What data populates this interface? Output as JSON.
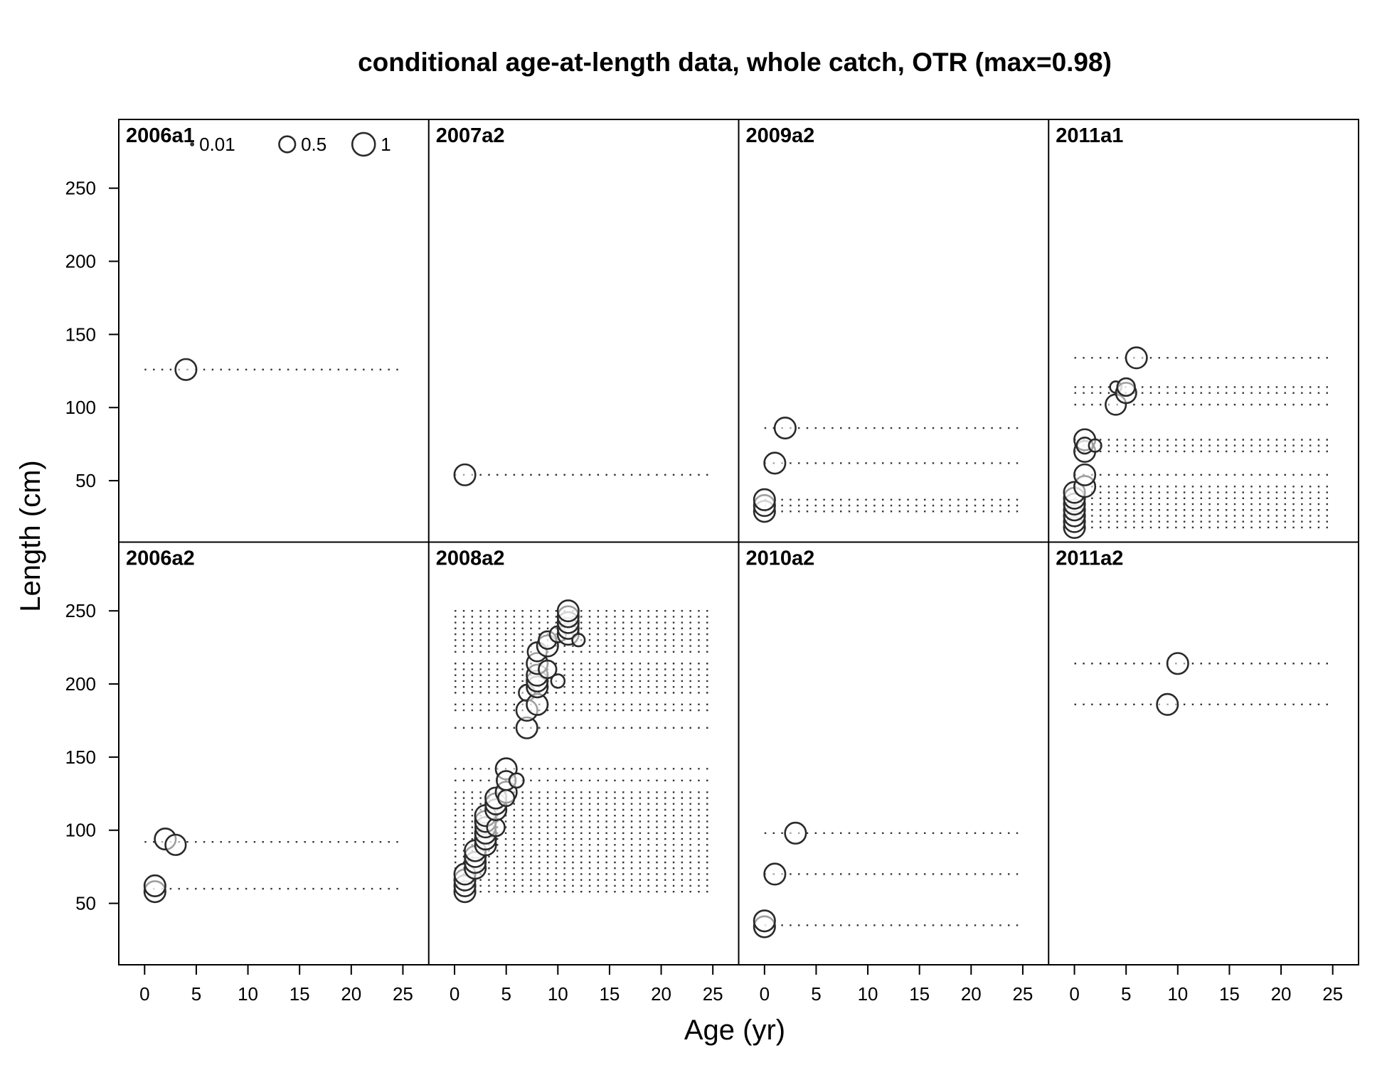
{
  "chart_data": {
    "type": "scatter",
    "title": "conditional age-at-length data, whole catch, OTR (max=0.98)",
    "xlabel": "Age (yr)",
    "ylabel": "Length (cm)",
    "xlim": [
      -2.5,
      27.5
    ],
    "ylim": [
      8,
      297
    ],
    "x_ticks": [
      0,
      5,
      10,
      15,
      20,
      25
    ],
    "y_ticks": [
      50,
      100,
      150,
      200,
      250
    ],
    "grid": false,
    "legend": {
      "placement": "top-left",
      "entries": [
        {
          "label": "0.01",
          "value": 0.01
        },
        {
          "label": "0.5",
          "value": 0.5
        },
        {
          "label": "1",
          "value": 1
        }
      ]
    },
    "panels": [
      {
        "label": "2006a1",
        "rows": [
          126
        ],
        "points": [
          [
            4,
            126,
            0.85
          ]
        ]
      },
      {
        "label": "2007a2",
        "rows": [
          54
        ],
        "points": [
          [
            1,
            54,
            0.85
          ]
        ]
      },
      {
        "label": "2009a2",
        "rows": [
          29,
          33,
          37,
          62,
          86
        ],
        "points": [
          [
            0,
            29,
            0.85
          ],
          [
            0,
            33,
            0.85
          ],
          [
            0,
            37,
            0.85
          ],
          [
            1,
            62,
            0.85
          ],
          [
            2,
            86,
            0.85
          ]
        ]
      },
      {
        "label": "2011a1",
        "rows": [
          18,
          22,
          26,
          30,
          34,
          38,
          42,
          46,
          54,
          70,
          74,
          78,
          102,
          110,
          114,
          134
        ],
        "points": [
          [
            0,
            18,
            0.85
          ],
          [
            0,
            22,
            0.85
          ],
          [
            0,
            26,
            0.85
          ],
          [
            0,
            30,
            0.85
          ],
          [
            0,
            34,
            0.85
          ],
          [
            0,
            38,
            0.85
          ],
          [
            0,
            42,
            0.85
          ],
          [
            1,
            46,
            0.85
          ],
          [
            1,
            54,
            0.85
          ],
          [
            1,
            70,
            0.85
          ],
          [
            1,
            78,
            0.85
          ],
          [
            1,
            74,
            0.5
          ],
          [
            2,
            74,
            0.3
          ],
          [
            4,
            102,
            0.8
          ],
          [
            4,
            114,
            0.25
          ],
          [
            5,
            110,
            0.8
          ],
          [
            5,
            114,
            0.6
          ],
          [
            6,
            134,
            0.85
          ]
        ]
      },
      {
        "label": "2006a2",
        "rows": [
          60,
          92
        ],
        "points": [
          [
            1,
            58,
            0.85
          ],
          [
            1,
            62,
            0.85
          ],
          [
            2,
            94,
            0.85
          ],
          [
            3,
            90,
            0.8
          ]
        ]
      },
      {
        "label": "2008a2",
        "rows": [
          58,
          62,
          66,
          70,
          74,
          78,
          82,
          86,
          90,
          94,
          98,
          102,
          106,
          110,
          114,
          118,
          122,
          126,
          134,
          142,
          170,
          182,
          186,
          194,
          198,
          202,
          206,
          210,
          214,
          222,
          226,
          230,
          234,
          238,
          242,
          246,
          250
        ],
        "points": [
          [
            1,
            58,
            0.85
          ],
          [
            1,
            62,
            0.85
          ],
          [
            1,
            66,
            0.85
          ],
          [
            1,
            70,
            0.85
          ],
          [
            2,
            74,
            0.85
          ],
          [
            2,
            78,
            0.85
          ],
          [
            2,
            82,
            0.85
          ],
          [
            2,
            86,
            0.85
          ],
          [
            3,
            90,
            0.85
          ],
          [
            3,
            94,
            0.85
          ],
          [
            3,
            98,
            0.85
          ],
          [
            3,
            102,
            0.8
          ],
          [
            3,
            106,
            0.85
          ],
          [
            3,
            110,
            0.85
          ],
          [
            4,
            102,
            0.6
          ],
          [
            4,
            114,
            0.85
          ],
          [
            4,
            118,
            0.85
          ],
          [
            4,
            122,
            0.85
          ],
          [
            5,
            126,
            0.85
          ],
          [
            5,
            142,
            0.85
          ],
          [
            5,
            122,
            0.5
          ],
          [
            5,
            134,
            0.7
          ],
          [
            6,
            134,
            0.4
          ],
          [
            7,
            170,
            0.85
          ],
          [
            7,
            182,
            0.85
          ],
          [
            7,
            194,
            0.5
          ],
          [
            8,
            186,
            0.85
          ],
          [
            8,
            198,
            0.85
          ],
          [
            8,
            202,
            0.85
          ],
          [
            8,
            206,
            0.85
          ],
          [
            8,
            214,
            0.85
          ],
          [
            8,
            222,
            0.7
          ],
          [
            9,
            210,
            0.6
          ],
          [
            9,
            226,
            0.85
          ],
          [
            9,
            230,
            0.6
          ],
          [
            10,
            202,
            0.35
          ],
          [
            10,
            234,
            0.5
          ],
          [
            11,
            234,
            0.85
          ],
          [
            11,
            238,
            0.85
          ],
          [
            11,
            242,
            0.85
          ],
          [
            11,
            246,
            0.85
          ],
          [
            11,
            250,
            0.85
          ],
          [
            12,
            230,
            0.3
          ]
        ]
      },
      {
        "label": "2010a2",
        "rows": [
          35,
          70,
          98
        ],
        "points": [
          [
            0,
            34,
            0.85
          ],
          [
            0,
            38,
            0.85
          ],
          [
            1,
            70,
            0.85
          ],
          [
            3,
            98,
            0.85
          ]
        ]
      },
      {
        "label": "2011a2",
        "rows": [
          186,
          214
        ],
        "points": [
          [
            9,
            186,
            0.85
          ],
          [
            10,
            214,
            0.85
          ]
        ]
      }
    ]
  }
}
